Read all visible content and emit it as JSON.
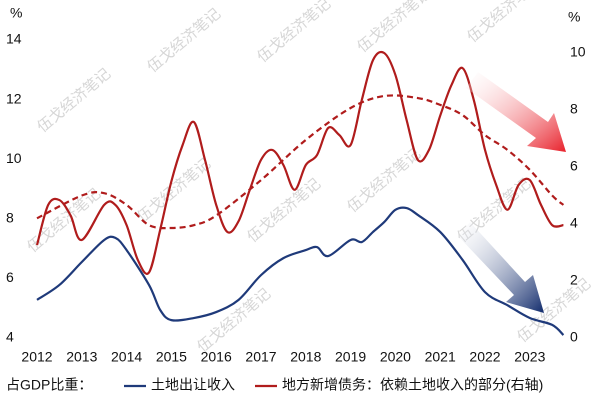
{
  "chart_data": {
    "type": "line",
    "y_unit": "%",
    "y2_unit": "%",
    "legend_prefix": "占GDP比重：",
    "watermark": "伍戈经济笔记",
    "xlim": [
      2011.9,
      2023.9
    ],
    "xticks": [
      2012,
      2013,
      2014,
      2015,
      2016,
      2017,
      2018,
      2019,
      2020,
      2021,
      2022,
      2023
    ],
    "ylim": [
      4,
      14
    ],
    "yticks": [
      4,
      6,
      8,
      10,
      12,
      14
    ],
    "y2lim": [
      0,
      10
    ],
    "y2ticks": [
      0,
      2,
      4,
      6,
      8,
      10
    ],
    "series": [
      {
        "name": "土地出让收入",
        "color": "#1f3a7a",
        "axis": "y",
        "x": [
          2012,
          2012.5,
          2013,
          2013.5,
          2013.75,
          2014,
          2014.5,
          2014.75,
          2015,
          2015.5,
          2016,
          2016.5,
          2017,
          2017.5,
          2018,
          2018.25,
          2018.5,
          2019,
          2019.25,
          2019.5,
          2019.75,
          2020,
          2020.25,
          2020.5,
          2021,
          2021.5,
          2022,
          2022.5,
          2023,
          2023.5,
          2023.75
        ],
        "values": [
          5.28,
          5.78,
          6.55,
          7.29,
          7.36,
          6.95,
          5.78,
          4.94,
          4.6,
          4.67,
          4.87,
          5.28,
          6.11,
          6.68,
          6.95,
          7.05,
          6.75,
          7.29,
          7.22,
          7.56,
          7.89,
          8.3,
          8.36,
          8.13,
          7.56,
          6.62,
          5.54,
          5.1,
          4.67,
          4.44,
          4.1
        ]
      },
      {
        "name": "地方新增债务：依赖土地收入的部分(右轴)",
        "color": "#b01c1c",
        "axis": "y2",
        "x": [
          2012,
          2012.25,
          2012.5,
          2012.75,
          2013,
          2013.5,
          2013.75,
          2014,
          2014.25,
          2014.5,
          2014.75,
          2015,
          2015.25,
          2015.5,
          2015.75,
          2016,
          2016.25,
          2016.5,
          2016.75,
          2017,
          2017.25,
          2017.5,
          2017.75,
          2018,
          2018.25,
          2018.5,
          2018.75,
          2019,
          2019.25,
          2019.5,
          2019.75,
          2020,
          2020.25,
          2020.5,
          2020.75,
          2021,
          2021.25,
          2021.5,
          2021.75,
          2022,
          2022.25,
          2022.5,
          2022.75,
          2023,
          2023.25,
          2023.5,
          2023.75
        ],
        "values": [
          3.26,
          4.67,
          4.84,
          4.3,
          3.44,
          4.67,
          4.67,
          3.96,
          2.74,
          2.3,
          3.8,
          5.5,
          6.77,
          7.58,
          6.25,
          4.67,
          3.72,
          4.1,
          5.2,
          6.25,
          6.6,
          6.07,
          5.2,
          6.07,
          6.42,
          7.37,
          7.12,
          6.77,
          8.35,
          9.75,
          10.0,
          9.23,
          7.65,
          6.25,
          6.6,
          7.8,
          8.87,
          9.47,
          8.35,
          6.6,
          5.37,
          4.5,
          5.37,
          5.54,
          4.67,
          3.96,
          3.96
        ]
      },
      {
        "color": "#b01c1c",
        "axis": "y2",
        "dashed": true,
        "x": [
          2012,
          2013,
          2013.5,
          2014,
          2014.5,
          2015,
          2015.5,
          2016,
          2017,
          2018,
          2019,
          2019.75,
          2020.5,
          2021,
          2021.5,
          2022,
          2022.5,
          2023,
          2023.5,
          2023.75
        ],
        "values": [
          4.2,
          5.0,
          5.08,
          4.67,
          3.96,
          3.86,
          3.96,
          4.3,
          5.54,
          6.95,
          8.07,
          8.49,
          8.42,
          8.18,
          7.82,
          7.12,
          6.6,
          5.9,
          5.0,
          4.67
        ]
      }
    ]
  }
}
